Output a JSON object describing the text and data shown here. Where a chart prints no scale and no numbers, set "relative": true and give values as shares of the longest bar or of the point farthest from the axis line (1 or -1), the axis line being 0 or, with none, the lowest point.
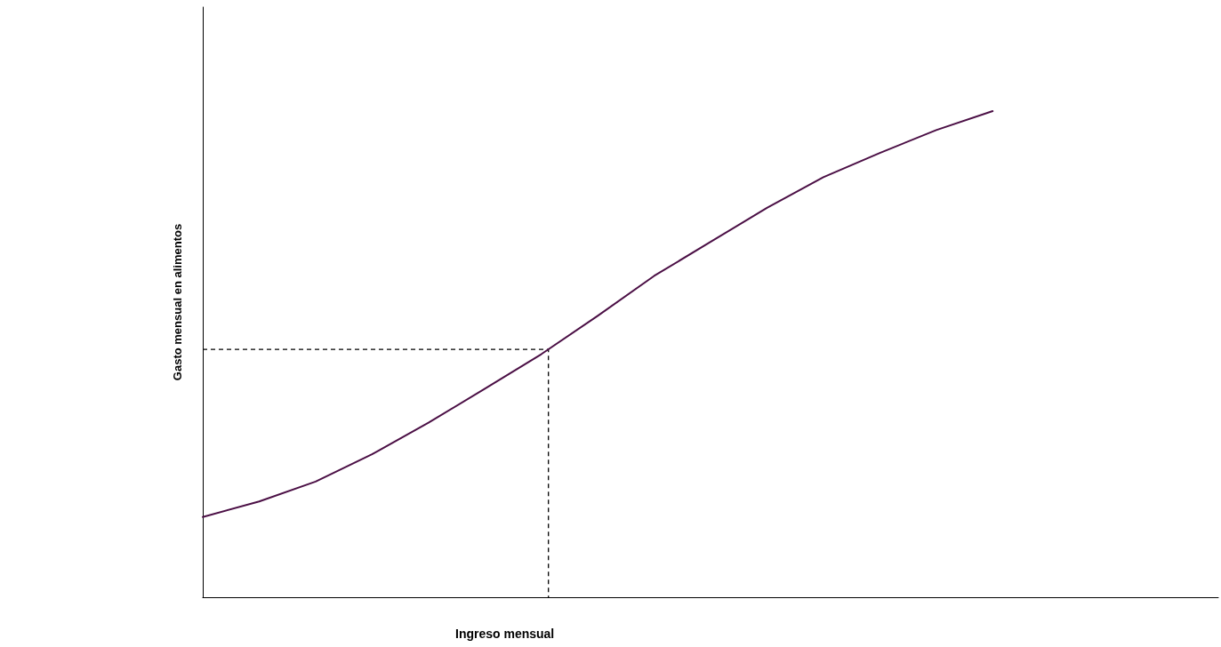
{
  "chart_data": {
    "type": "line",
    "xlabel": "Ingreso mensual",
    "ylabel": "Gasto mensual en alimentos",
    "relative": true,
    "grid": false,
    "marker": "none",
    "categories": [
      null,
      null,
      null,
      null,
      null,
      null,
      null,
      null,
      null,
      null,
      null,
      null,
      null,
      null,
      null,
      null,
      null,
      null,
      null
    ],
    "series": [
      {
        "color": "#4b0f45",
        "values": [
          0.165,
          0.197,
          0.238,
          0.294,
          0.359,
          0.429,
          0.5,
          0.579,
          0.661,
          0.731,
          0.801,
          0.864,
          0.914,
          0.961,
          1.0,
          null,
          null,
          null,
          null
        ]
      }
    ],
    "ref_lines": [
      {
        "axis": "y",
        "value": 0.51,
        "color": "#000000",
        "line_style": "dashed"
      }
    ]
  }
}
